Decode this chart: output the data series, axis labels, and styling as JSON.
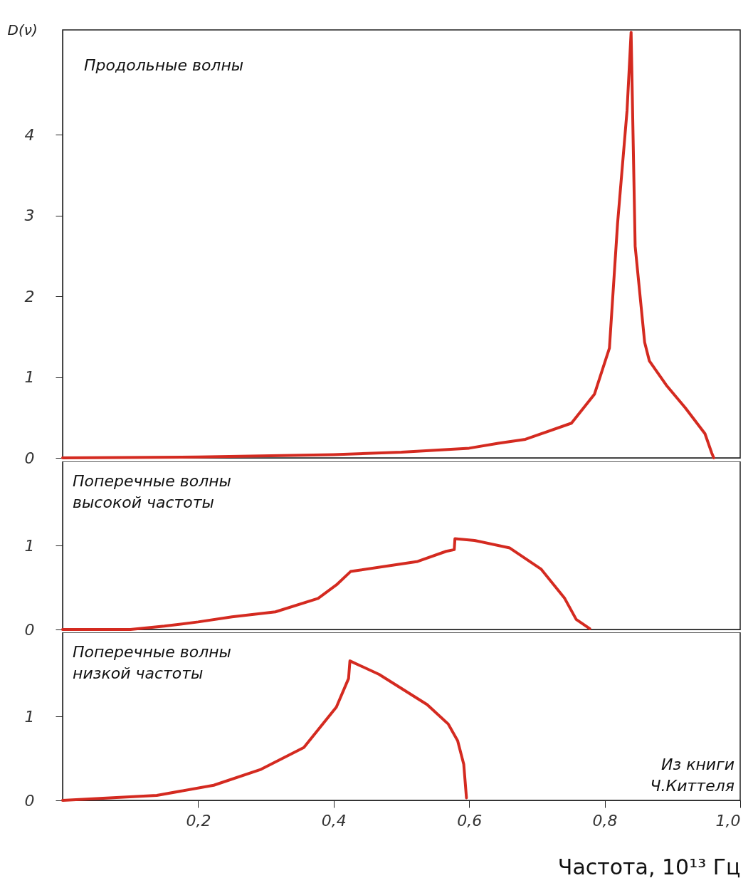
{
  "chart_data": [
    {
      "type": "line",
      "title": "Продольные волны",
      "ylabel": "D(ν)",
      "xlim": [
        0,
        1
      ],
      "ylim": [
        0,
        5.3
      ],
      "yticks": [
        0,
        1,
        2,
        3,
        4
      ],
      "tick_labels": "y",
      "grid": false,
      "x": [
        0,
        0.2,
        0.4,
        0.5,
        0.6,
        0.643,
        0.683,
        0.751,
        0.785,
        0.807,
        0.819,
        0.833,
        0.839,
        0.845,
        0.859,
        0.866,
        0.891,
        0.919,
        0.948,
        0.958,
        0.961
      ],
      "series": [
        {
          "color": "#d42a20",
          "values": [
            0,
            0.01,
            0.04,
            0.07,
            0.12,
            0.18,
            0.23,
            0.43,
            0.79,
            1.36,
            2.9,
            4.3,
            5.27,
            2.62,
            1.43,
            1.2,
            0.9,
            0.62,
            0.3,
            0.06,
            0
          ]
        }
      ]
    },
    {
      "type": "line",
      "title": "Поперечные волны\nвысокой частоты",
      "xlim": [
        0,
        1
      ],
      "ylim": [
        0,
        2
      ],
      "yticks": [
        0,
        1
      ],
      "tick_labels": "y",
      "grid": false,
      "x": [
        0,
        0.1,
        0.15,
        0.2,
        0.25,
        0.314,
        0.377,
        0.404,
        0.425,
        0.524,
        0.566,
        0.578,
        0.579,
        0.608,
        0.66,
        0.706,
        0.741,
        0.758,
        0.778
      ],
      "series": [
        {
          "color": "#d42a20",
          "values": [
            0,
            0,
            0.04,
            0.09,
            0.15,
            0.21,
            0.37,
            0.53,
            0.69,
            0.81,
            0.93,
            0.95,
            1.08,
            1.06,
            0.97,
            0.72,
            0.37,
            0.12,
            0.01
          ]
        }
      ]
    },
    {
      "type": "line",
      "title": "Поперечные волны\nнизкой частоты",
      "xlabel": "Частота, 10¹³ Гц",
      "xlim": [
        0,
        1
      ],
      "ylim": [
        0,
        2
      ],
      "yticks": [
        0,
        1
      ],
      "grid": false,
      "xticks": [
        {
          "value": 0.2,
          "label": "0,2"
        },
        {
          "value": 0.4,
          "label": "0,4"
        },
        {
          "value": 0.6,
          "label": "0,6"
        },
        {
          "value": 0.8,
          "label": "0,8"
        },
        {
          "value": 1,
          "label": "1,0"
        }
      ],
      "annotations": [
        "Из книги\nЧ.Киттеля"
      ],
      "x": [
        0,
        0.139,
        0.223,
        0.293,
        0.356,
        0.404,
        0.422,
        0.424,
        0.467,
        0.538,
        0.569,
        0.583,
        0.592,
        0.596
      ],
      "series": [
        {
          "color": "#d42a20",
          "values": [
            0,
            0.06,
            0.18,
            0.37,
            0.63,
            1.11,
            1.45,
            1.66,
            1.5,
            1.14,
            0.91,
            0.71,
            0.43,
            0.03
          ]
        }
      ]
    }
  ]
}
